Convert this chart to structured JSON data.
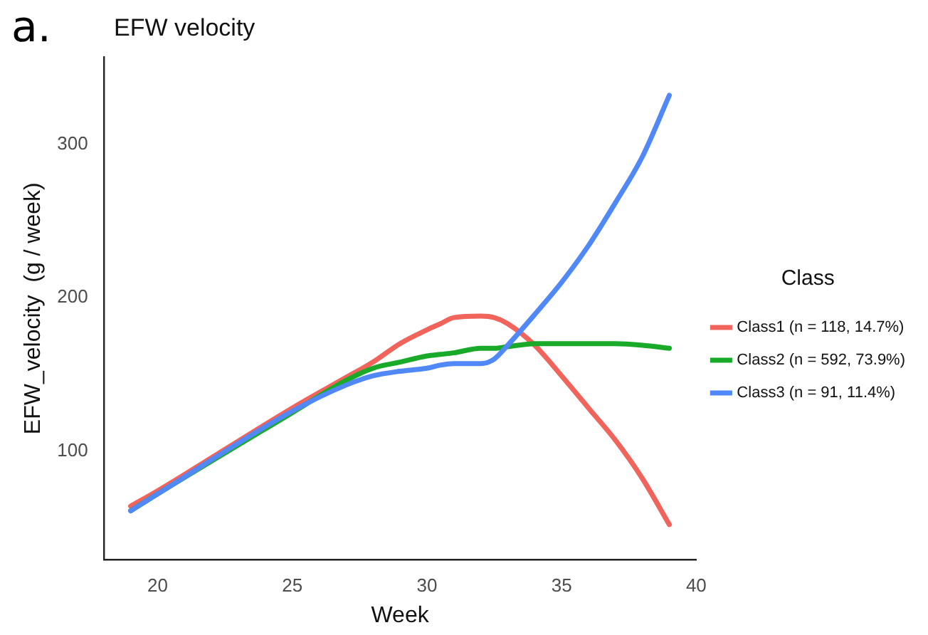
{
  "chart_data": {
    "type": "line",
    "title": "EFW velocity",
    "xlabel": "Week",
    "ylabel": "EFW_velocity  (g / week)",
    "legend_title": "Class",
    "annotations": [
      "a."
    ],
    "x": [
      19,
      20,
      25,
      27,
      28,
      29,
      30,
      30.5,
      31,
      32,
      32.5,
      33,
      34,
      35,
      36,
      37,
      38,
      39
    ],
    "series": [
      {
        "name": "Class1 (n = 118, 14.7%)",
        "color": "#f0645c",
        "values": [
          64,
          74,
          128,
          148,
          158,
          170,
          179,
          183,
          187,
          188,
          187,
          183,
          169,
          149,
          128,
          107,
          82,
          52
        ]
      },
      {
        "name": "Class2 (n = 592, 73.9%)",
        "color": "#1aaa2a",
        "values": [
          61,
          72,
          125,
          146,
          154,
          158,
          162,
          163,
          164,
          167,
          167,
          168,
          170,
          170,
          170,
          170,
          169,
          167
        ]
      },
      {
        "name": "Class3 (n = 91, 11.4%)",
        "color": "#5188f7",
        "values": [
          61,
          72,
          126,
          143,
          149,
          152,
          154,
          156,
          157,
          157,
          160,
          169,
          189,
          210,
          234,
          262,
          292,
          332
        ]
      }
    ],
    "xlim": [
      18,
      40
    ],
    "xticks": [
      20,
      25,
      30,
      35,
      40
    ],
    "ylim": [
      29,
      357
    ],
    "yticks": [
      100,
      200,
      300
    ],
    "grid": false,
    "legend": "right",
    "marker": "none",
    "line_style": "solid"
  }
}
